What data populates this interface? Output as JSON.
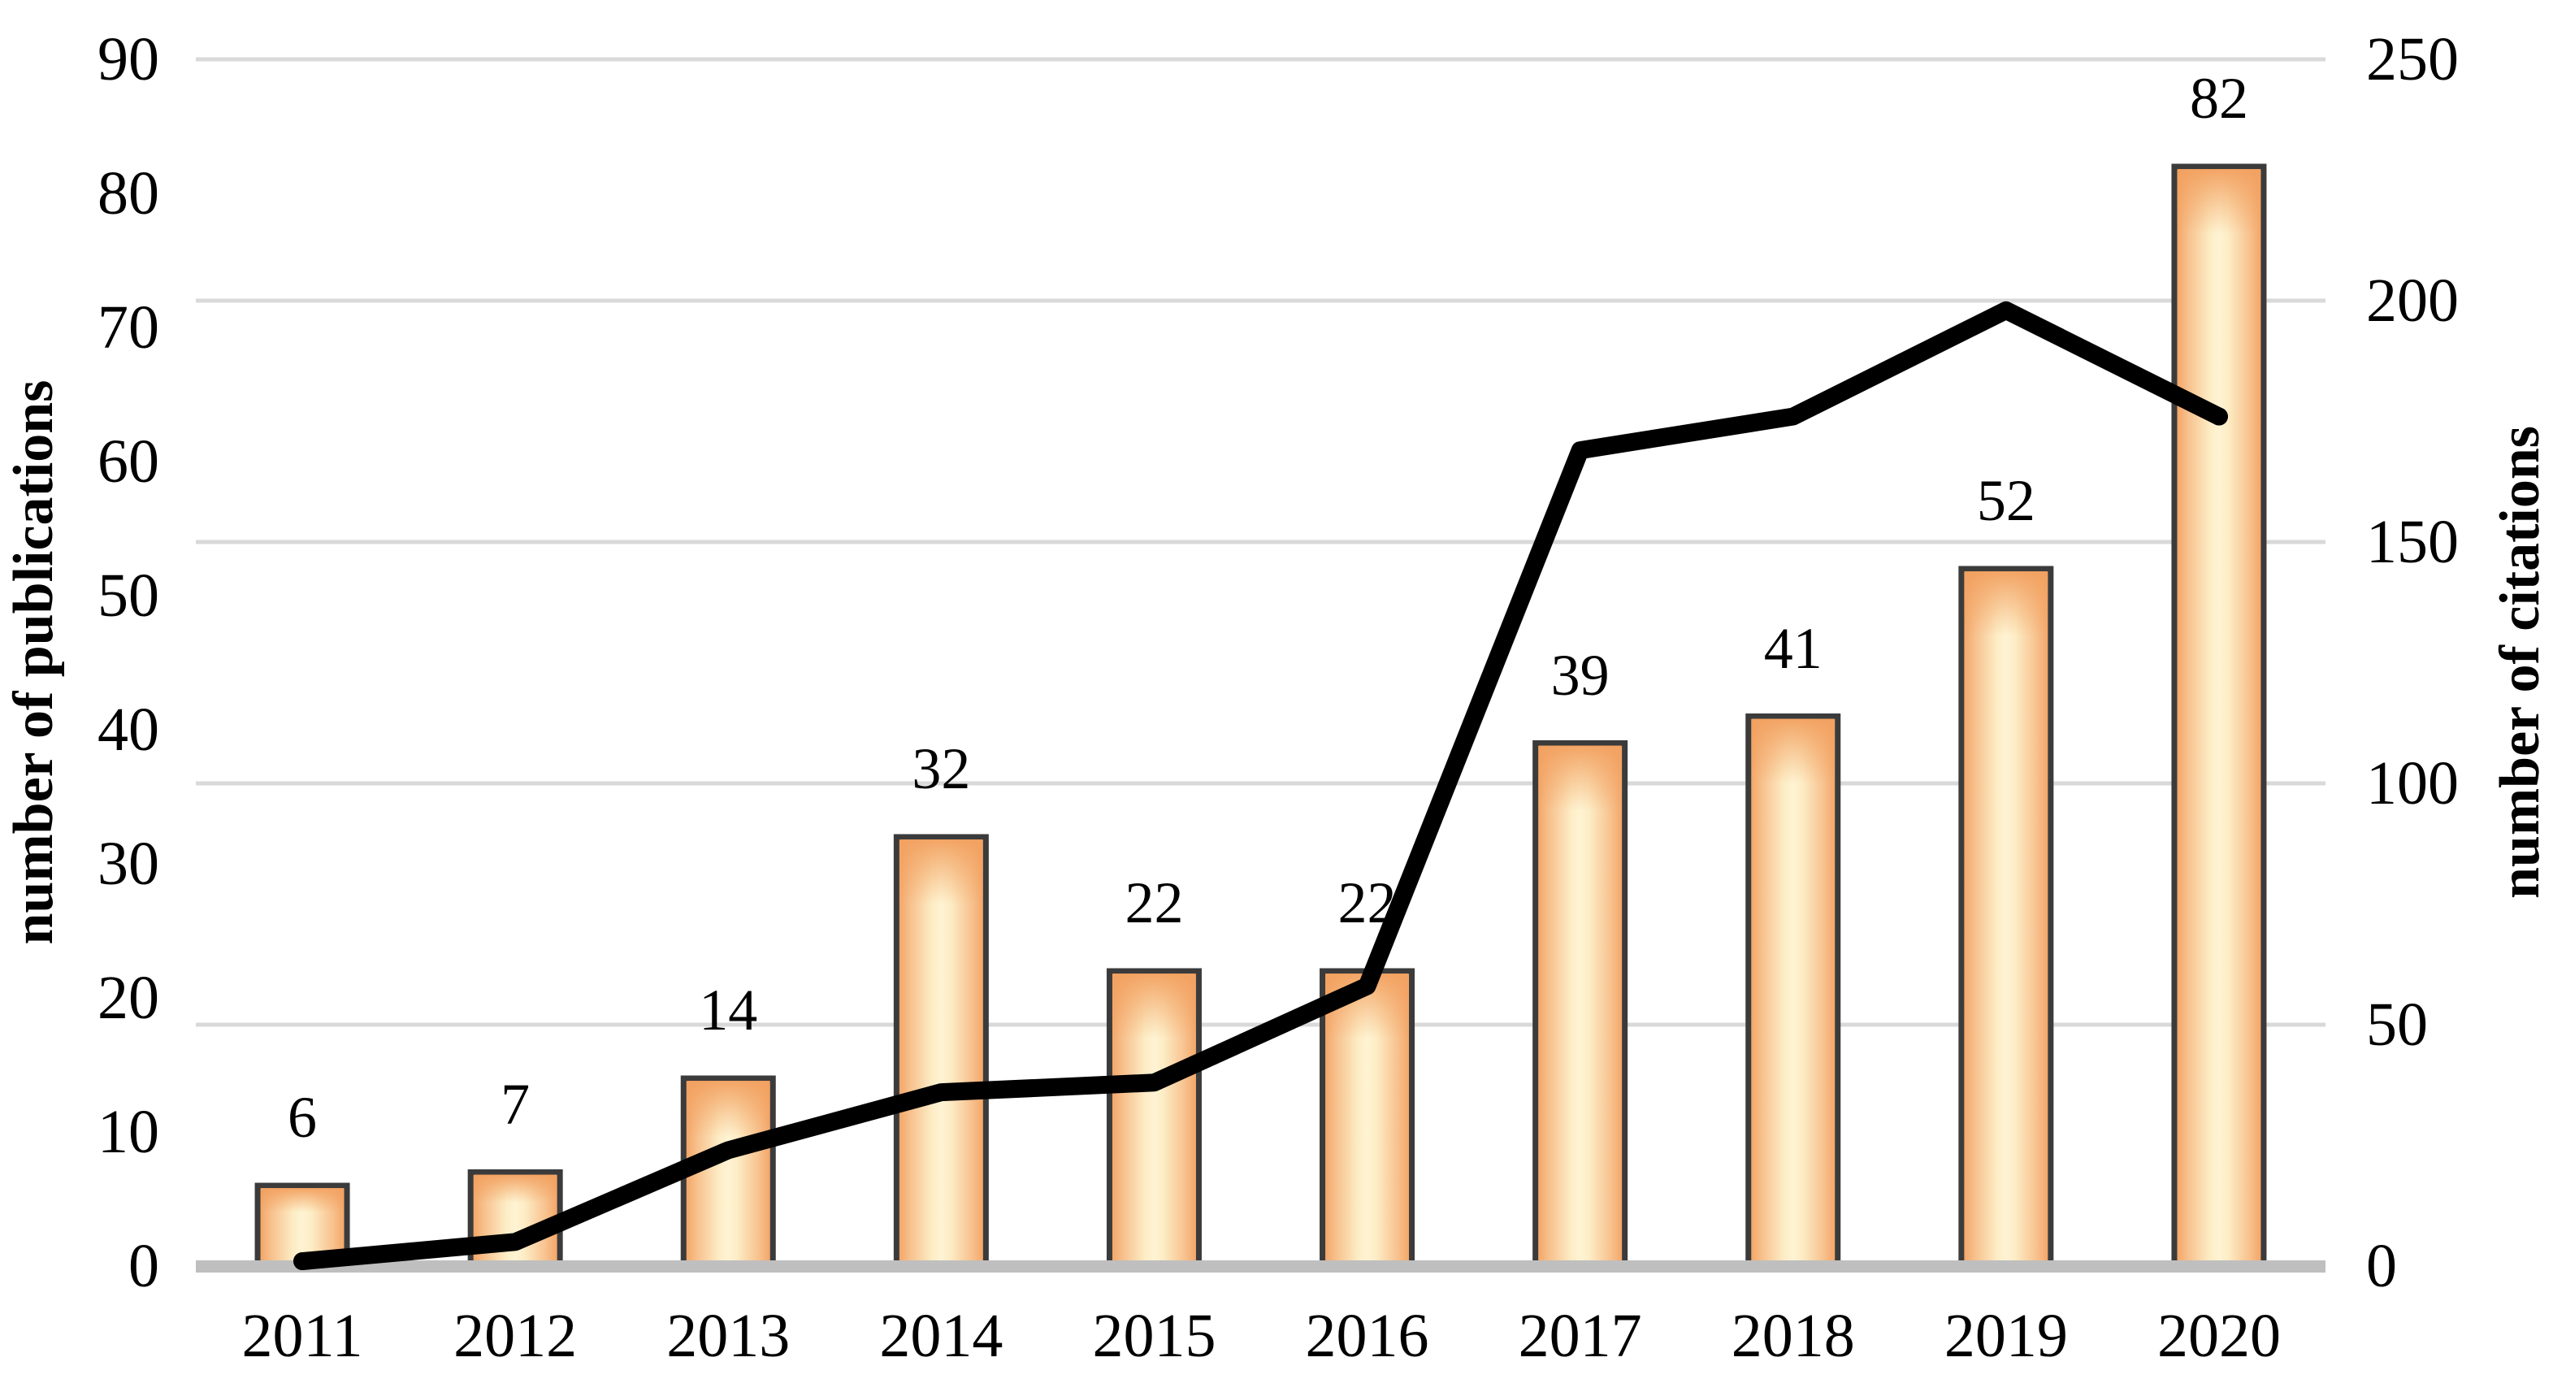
{
  "chart_data": {
    "type": "combo",
    "categories": [
      "2011",
      "2012",
      "2013",
      "2014",
      "2015",
      "2016",
      "2017",
      "2018",
      "2019",
      "2020"
    ],
    "series": [
      {
        "name": "number of publications",
        "chart_type": "bar",
        "axis": "left",
        "values": [
          6,
          7,
          14,
          32,
          22,
          22,
          39,
          41,
          52,
          82
        ],
        "data_labels": [
          "6",
          "7",
          "14",
          "32",
          "22",
          "22",
          "39",
          "41",
          "52",
          "82"
        ]
      },
      {
        "name": "number of citations",
        "chart_type": "line",
        "axis": "right",
        "values": [
          1,
          5,
          24,
          36,
          38,
          58,
          169,
          176,
          198,
          176
        ]
      }
    ],
    "left_axis": {
      "label": "number of publications",
      "min": 0,
      "max": 90,
      "tick_step": 10,
      "tick_labels": [
        "0",
        "10",
        "20",
        "30",
        "40",
        "50",
        "60",
        "70",
        "80",
        "90"
      ]
    },
    "right_axis": {
      "label": "number of citations",
      "min": 0,
      "max": 250,
      "tick_step": 50,
      "tick_labels": [
        "0",
        "50",
        "100",
        "150",
        "200",
        "250"
      ]
    },
    "x_axis": {
      "tick_labels": [
        "2011",
        "2012",
        "2013",
        "2014",
        "2015",
        "2016",
        "2017",
        "2018",
        "2019",
        "2020"
      ]
    },
    "legend": "none",
    "grid": {
      "horizontal": true,
      "at_right_axis_ticks": true
    },
    "colors": {
      "bar_edge": "#F2A05F",
      "bar_mid": "#F7C08C",
      "bar_center": "#FEF3D3",
      "bar_border": "#3B3B3B",
      "line": "#000000",
      "gridline": "#D9D9D9",
      "axis_baseline": "#BFBFBF",
      "text": "#000000",
      "background": "#FFFFFF"
    }
  }
}
